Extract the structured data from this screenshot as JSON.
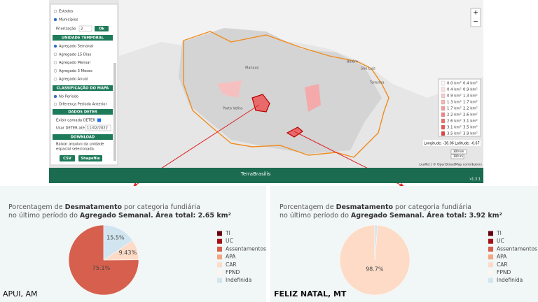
{
  "sidebar": {
    "region_options": [
      "Estados",
      "Municípios"
    ],
    "priority_label": "Priorização",
    "priority_value": "2",
    "ok": "Ok",
    "temporal_header": "UNIDADE TEMPORAL",
    "temporal_options": [
      "Agregado Semanal",
      "Agregado 15 Dias",
      "Agregado Mensal",
      "Agregado 3 Meses",
      "Agregado Anual"
    ],
    "class_header": "CLASSIFICAÇÃO DO MAPA",
    "class_options": [
      "No Período",
      "Diferença Período Anterior"
    ],
    "deter_header": "DADOS DETER",
    "deter_show": "Exibir camada DETER",
    "deter_until": "Usar DETER até",
    "deter_date": "11/02/2022",
    "download_header": "DOWNLOAD",
    "download_text": [
      "Baixar arquivo da unidade",
      "espacial selecionada."
    ],
    "buttons": [
      "CSV",
      "Shapefile"
    ]
  },
  "map": {
    "zoom_in": "+",
    "zoom_out": "−",
    "cities": [
      "Manaus",
      "Belém",
      "São Luís",
      "Teresina",
      "Porto Velho"
    ],
    "legend": {
      "labels": [
        [
          "0.0 km²",
          "0.4 km²"
        ],
        [
          "0.4 km²",
          "0.9 km²"
        ],
        [
          "0.9 km²",
          "1.3 km²"
        ],
        [
          "1.3 km²",
          "1.7 km²"
        ],
        [
          "1.7 km²",
          "2.2 km²"
        ],
        [
          "2.2 km²",
          "2.6 km²"
        ],
        [
          "2.6 km²",
          "3.1 km²"
        ],
        [
          "3.1 km²",
          "3.5 km²"
        ],
        [
          "3.5 km²",
          "3.9 km²"
        ]
      ],
      "colors": [
        "#fff5f5",
        "#fde0e0",
        "#fbcaca",
        "#f8b3b3",
        "#f59c9c",
        "#f08585",
        "#eb6e6e",
        "#e65757",
        "#e04040"
      ]
    },
    "coords": "Longitude: -36.06 Latitude: -0.67",
    "scale": [
      "300 km",
      "300 mi"
    ],
    "attribution": "Leaflet | © OpenStreetMap contributors"
  },
  "footer": {
    "title": "TerraBrasilis",
    "version": "v1.3.1"
  },
  "chart_data": [
    {
      "type": "pie",
      "title_parts": [
        "Porcentagem de ",
        "Desmatamento",
        " por categoria fundiária",
        "no último período do ",
        "Agregado Semanal. Área total: 2.65 km²"
      ],
      "place": "APUI, AM",
      "categories": [
        "TI",
        "UC",
        "Assentamentos",
        "APA",
        "CAR",
        "FPND",
        "Indefinida"
      ],
      "colors": [
        "#67000d",
        "#a50f15",
        "#d6604d",
        "#f4a582",
        "#fddbc7",
        "#fff5f0",
        "#d1e5f0"
      ],
      "values": [
        0,
        0,
        75.1,
        0,
        9.43,
        0,
        15.5
      ],
      "value_labels": [
        null,
        null,
        "75.1%",
        null,
        "9.43%",
        null,
        "15.5%"
      ]
    },
    {
      "type": "pie",
      "title_parts": [
        "Porcentagem de ",
        "Desmatamento",
        " por categoria fundiária",
        "no último período do ",
        "Agregado Semanal. Área total: 3.92 km²"
      ],
      "place": "FELIZ NATAL, MT",
      "categories": [
        "TI",
        "UC",
        "Assentamentos",
        "APA",
        "CAR",
        "FPND",
        "Indefinida"
      ],
      "colors": [
        "#67000d",
        "#a50f15",
        "#d6604d",
        "#f4a582",
        "#fddbc7",
        "#fff5f0",
        "#d1e5f0"
      ],
      "values": [
        0,
        0,
        0,
        0,
        98.7,
        0,
        1.3
      ],
      "value_labels": [
        null,
        null,
        null,
        null,
        "98.7%",
        null,
        null
      ]
    }
  ]
}
